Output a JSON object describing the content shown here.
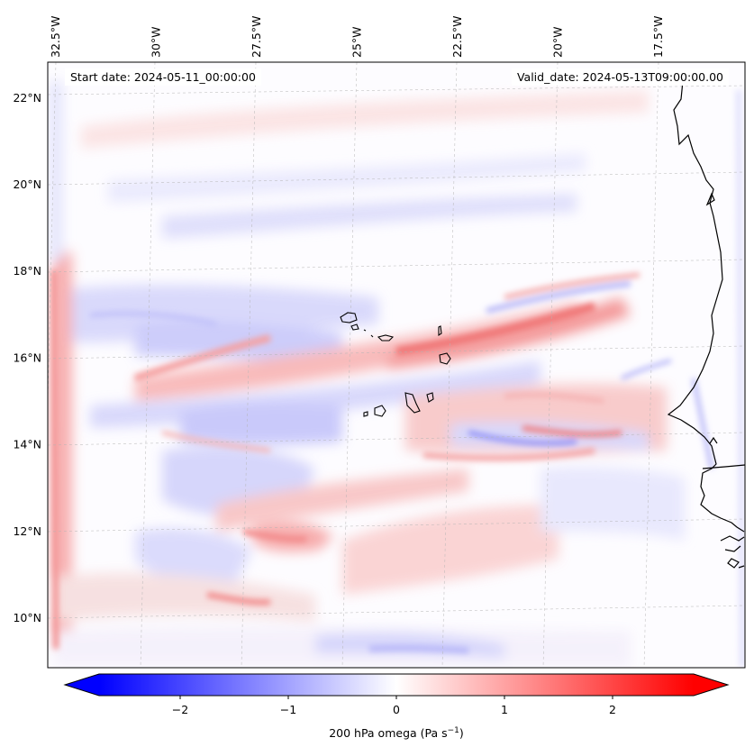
{
  "map": {
    "start_label": "Start date: 2024-05-11_00:00:00",
    "valid_label": "Valid_date: 2024-05-13T09:00:00.00",
    "extent": {
      "lon_min": -33.0,
      "lon_max": -15.6,
      "lat_min": 8.8,
      "lat_max": 22.8
    },
    "lon_ticks": [
      {
        "value": -32.5,
        "label": "32.5°W"
      },
      {
        "value": -30.0,
        "label": "30°W"
      },
      {
        "value": -27.5,
        "label": "27.5°W"
      },
      {
        "value": -25.0,
        "label": "25°W"
      },
      {
        "value": -22.5,
        "label": "22.5°W"
      },
      {
        "value": -20.0,
        "label": "20°W"
      },
      {
        "value": -17.5,
        "label": "17.5°W"
      }
    ],
    "lat_ticks": [
      {
        "value": 10,
        "label": "10°N"
      },
      {
        "value": 12,
        "label": "12°N"
      },
      {
        "value": 14,
        "label": "14°N"
      },
      {
        "value": 16,
        "label": "16°N"
      },
      {
        "value": 18,
        "label": "18°N"
      },
      {
        "value": 20,
        "label": "20°N"
      },
      {
        "value": 22,
        "label": "22°N"
      }
    ],
    "islands": [
      "Santo Antão",
      "São Vicente",
      "São Nicolau",
      "Sal",
      "Boa Vista",
      "Santiago",
      "Fogo",
      "Brava",
      "Maio"
    ],
    "field": "200 hPa omega"
  },
  "colorbar": {
    "label_main": "200 hPa omega (Pa s",
    "label_exp": "−1",
    "label_close": ")",
    "min": -2.75,
    "max": 2.75,
    "ticks": [
      {
        "value": -2,
        "label": "−2"
      },
      {
        "value": -1,
        "label": "−1"
      },
      {
        "value": 0,
        "label": "0"
      },
      {
        "value": 1,
        "label": "1"
      },
      {
        "value": 2,
        "label": "2"
      }
    ],
    "colors": {
      "negative": "#0000ff",
      "zero": "#ffffff",
      "positive": "#ff0000"
    }
  }
}
